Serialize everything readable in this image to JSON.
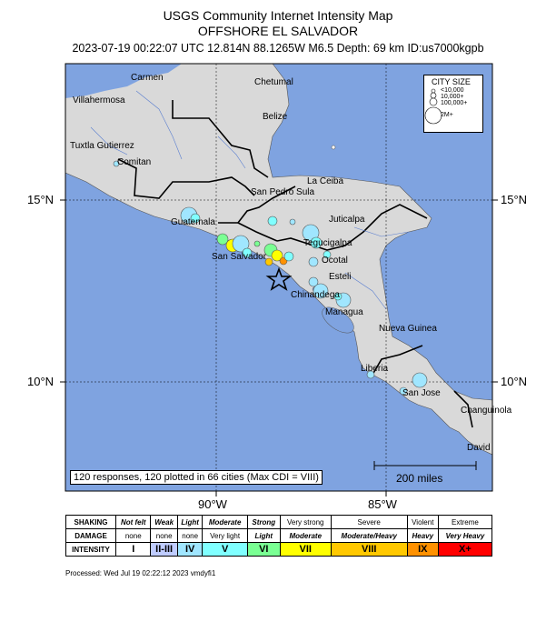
{
  "header": {
    "title": "USGS Community Internet Intensity Map",
    "region": "OFFSHORE EL SALVADOR",
    "event_line": "2023-07-19 00:22:07 UTC 12.814N 88.1265W M6.5 Depth: 69 km ID:us7000kgpb"
  },
  "map": {
    "city_labels": [
      {
        "name": "Carmen"
      },
      {
        "name": "Villahermosa"
      },
      {
        "name": "Chetumal"
      },
      {
        "name": "Belize"
      },
      {
        "name": "Tuxtla Gutierrez"
      },
      {
        "name": "Comitan"
      },
      {
        "name": "La Ceiba"
      },
      {
        "name": "San Pedro Sula"
      },
      {
        "name": "Guatemala"
      },
      {
        "name": "Juticalpa"
      },
      {
        "name": "Tegucigalpa"
      },
      {
        "name": "San Salvador"
      },
      {
        "name": "Ocotal"
      },
      {
        "name": "Esteli"
      },
      {
        "name": "Chinandega"
      },
      {
        "name": "Managua"
      },
      {
        "name": "Nueva Guinea"
      },
      {
        "name": "Liberia"
      },
      {
        "name": "San Jose"
      },
      {
        "name": "Changuinola"
      },
      {
        "name": "David"
      }
    ],
    "lat_labels": {
      "lat15": "15°N",
      "lat10": "10°N"
    },
    "lon_labels": {
      "lon90": "90°W",
      "lon85": "85°W"
    },
    "responses_text": "120 responses, 120 plotted in 66 cities (Max CDI = VIII)",
    "scale_text": "200 miles",
    "city_size_legend": {
      "title": "CITY SIZE",
      "rows": [
        "<10,000",
        "10,000+",
        "100,000+",
        "2M+"
      ]
    },
    "colors": {
      "ocean": "#7fa3e0",
      "land": "#d9d9d9",
      "epicenter": "#000000"
    }
  },
  "legend": {
    "shaking_label": "SHAKING",
    "damage_label": "DAMAGE",
    "intensity_label": "INTENSITY",
    "shaking": [
      "Not felt",
      "Weak",
      "Light",
      "Moderate",
      "Strong",
      "Very strong",
      "Severe",
      "Violent",
      "Extreme"
    ],
    "damage": [
      "none",
      "none",
      "none",
      "Very light",
      "Light",
      "Moderate",
      "Moderate/Heavy",
      "Heavy",
      "Very Heavy"
    ],
    "intensity": [
      "I",
      "II-III",
      "IV",
      "V",
      "VI",
      "VII",
      "VIII",
      "IX",
      "X+"
    ],
    "intensity_colors": [
      "#ffffff",
      "#bfccff",
      "#a0e6ff",
      "#80ffff",
      "#7aff93",
      "#ffff00",
      "#ffc800",
      "#ff9100",
      "#ff0000"
    ]
  },
  "footer": {
    "processed": "Processed: Wed Jul 19 02:22:12 2023 vmdyfi1"
  }
}
